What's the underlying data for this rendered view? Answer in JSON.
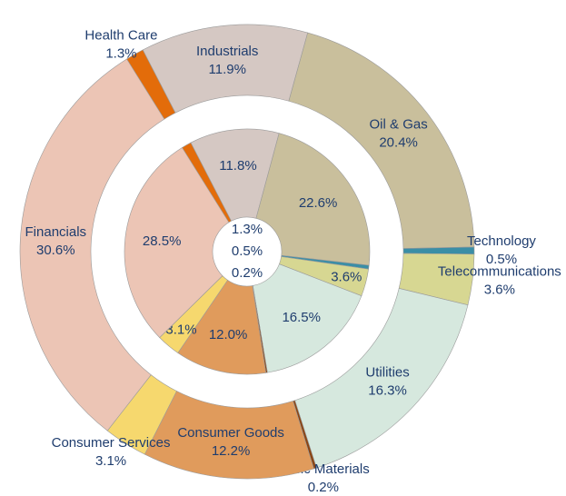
{
  "chart_data": {
    "type": "pie",
    "categories": [
      "Health Care",
      "Industrials",
      "Oil & Gas",
      "Technology",
      "Telecommunications",
      "Utilities",
      "Basic Materials",
      "Consumer Goods",
      "Consumer Services",
      "Financials"
    ],
    "colors": [
      "#e36c0a",
      "#d5c8c3",
      "#c9bf9c",
      "#3a8ea6",
      "#d7d792",
      "#d6e8de",
      "#8b4513",
      "#e09b5c",
      "#f6d86e",
      "#ecc5b5"
    ],
    "series": [
      {
        "values": [
          1.3,
          11.9,
          20.4,
          0.5,
          3.6,
          16.3,
          0.2,
          12.2,
          3.1,
          30.6
        ],
        "value_labels": [
          "1.3%",
          "11.9%",
          "20.4%",
          "0.5%",
          "3.6%",
          "16.3%",
          "0.2%",
          "12.2%",
          "3.1%",
          "30.6%"
        ]
      },
      {
        "values": [
          1.3,
          11.8,
          22.6,
          0.5,
          3.6,
          16.5,
          0.2,
          12.0,
          3.1,
          28.5
        ],
        "value_labels": [
          "1.3%",
          "11.8%",
          "22.6%",
          "0.5%",
          "3.6%",
          "16.5%",
          "0.2%",
          "12.0%",
          "3.1%",
          "28.5%"
        ]
      }
    ]
  }
}
